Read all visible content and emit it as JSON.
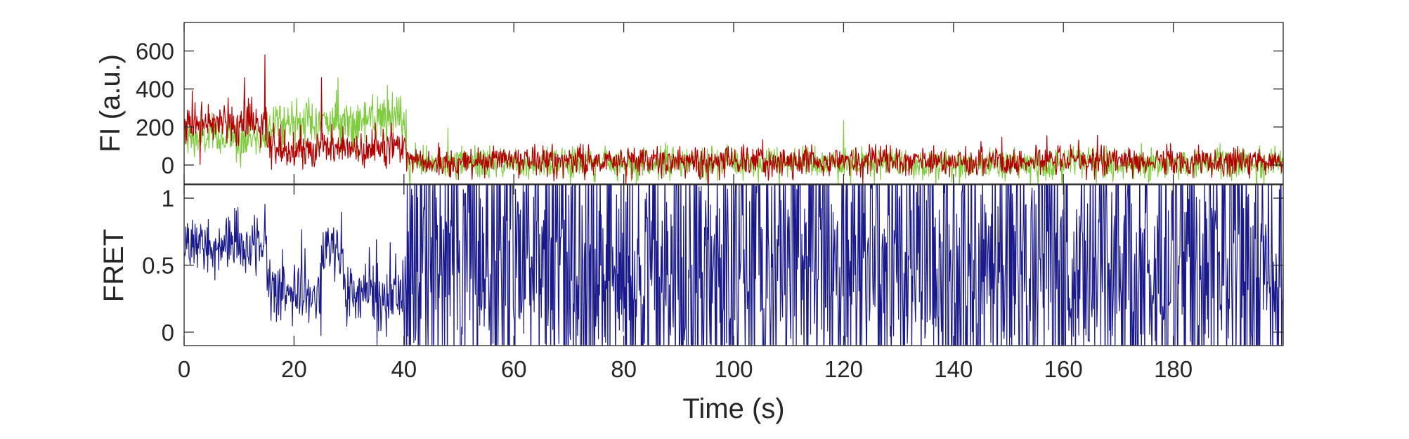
{
  "chart_data": [
    {
      "type": "line",
      "panel": "top",
      "ylabel": "FI (a.u.)",
      "xlabel": "",
      "xlim": [
        0,
        200
      ],
      "ylim": [
        -100,
        750
      ],
      "yticks": [
        0,
        200,
        400,
        600
      ],
      "ytick_labels": [
        "0",
        "200",
        "400",
        "600"
      ],
      "grid": false,
      "x_step_s": 0.1,
      "series": [
        {
          "color": "#7fcc3f",
          "segments": [
            {
              "t0": 0,
              "t1": 15,
              "mean": 140,
              "noise": 55
            },
            {
              "t0": 15,
              "t1": 40.5,
              "mean": 230,
              "noise": 60
            },
            {
              "t0": 40.5,
              "t1": 200,
              "mean": 10,
              "noise": 42
            }
          ],
          "spikes": [
            {
              "x": 28,
              "y": 460
            },
            {
              "x": 37,
              "y": 420
            },
            {
              "x": 120,
              "y": 235
            },
            {
              "x": 48,
              "y": 195
            }
          ]
        },
        {
          "color": "#b30000",
          "segments": [
            {
              "t0": 0,
              "t1": 15,
              "mean": 220,
              "noise": 55
            },
            {
              "t0": 15,
              "t1": 40.5,
              "mean": 90,
              "noise": 50
            },
            {
              "t0": 40.5,
              "t1": 200,
              "mean": 20,
              "noise": 38
            }
          ],
          "spikes": [
            {
              "x": 14.7,
              "y": 580
            },
            {
              "x": 25,
              "y": 460
            },
            {
              "x": 11,
              "y": 460
            },
            {
              "x": 1.5,
              "y": 390
            },
            {
              "x": 157,
              "y": 155
            }
          ]
        }
      ]
    },
    {
      "type": "line",
      "panel": "bottom",
      "ylabel": "FRET",
      "xlabel": "Time (s)",
      "xlim": [
        0,
        200
      ],
      "ylim": [
        -0.1,
        1.1
      ],
      "yticks": [
        0,
        0.5,
        1
      ],
      "ytick_labels": [
        "0",
        "0.5",
        "1"
      ],
      "xticks": [
        0,
        20,
        40,
        60,
        80,
        100,
        120,
        140,
        160,
        180
      ],
      "xtick_labels": [
        "0",
        "20",
        "40",
        "60",
        "80",
        "100",
        "120",
        "140",
        "160",
        "180"
      ],
      "grid": false,
      "x_step_s": 0.1,
      "series": [
        {
          "color": "#1a1a8c",
          "segments": [
            {
              "t0": 0,
              "t1": 15,
              "mean": 0.65,
              "noise": 0.11
            },
            {
              "t0": 15,
              "t1": 25,
              "mean": 0.3,
              "noise": 0.13
            },
            {
              "t0": 25,
              "t1": 29,
              "mean": 0.6,
              "noise": 0.12
            },
            {
              "t0": 29,
              "t1": 40.5,
              "mean": 0.28,
              "noise": 0.13
            },
            {
              "t0": 40.5,
              "t1": 200,
              "mean": 0.5,
              "noise": 0.65
            }
          ]
        }
      ]
    }
  ]
}
